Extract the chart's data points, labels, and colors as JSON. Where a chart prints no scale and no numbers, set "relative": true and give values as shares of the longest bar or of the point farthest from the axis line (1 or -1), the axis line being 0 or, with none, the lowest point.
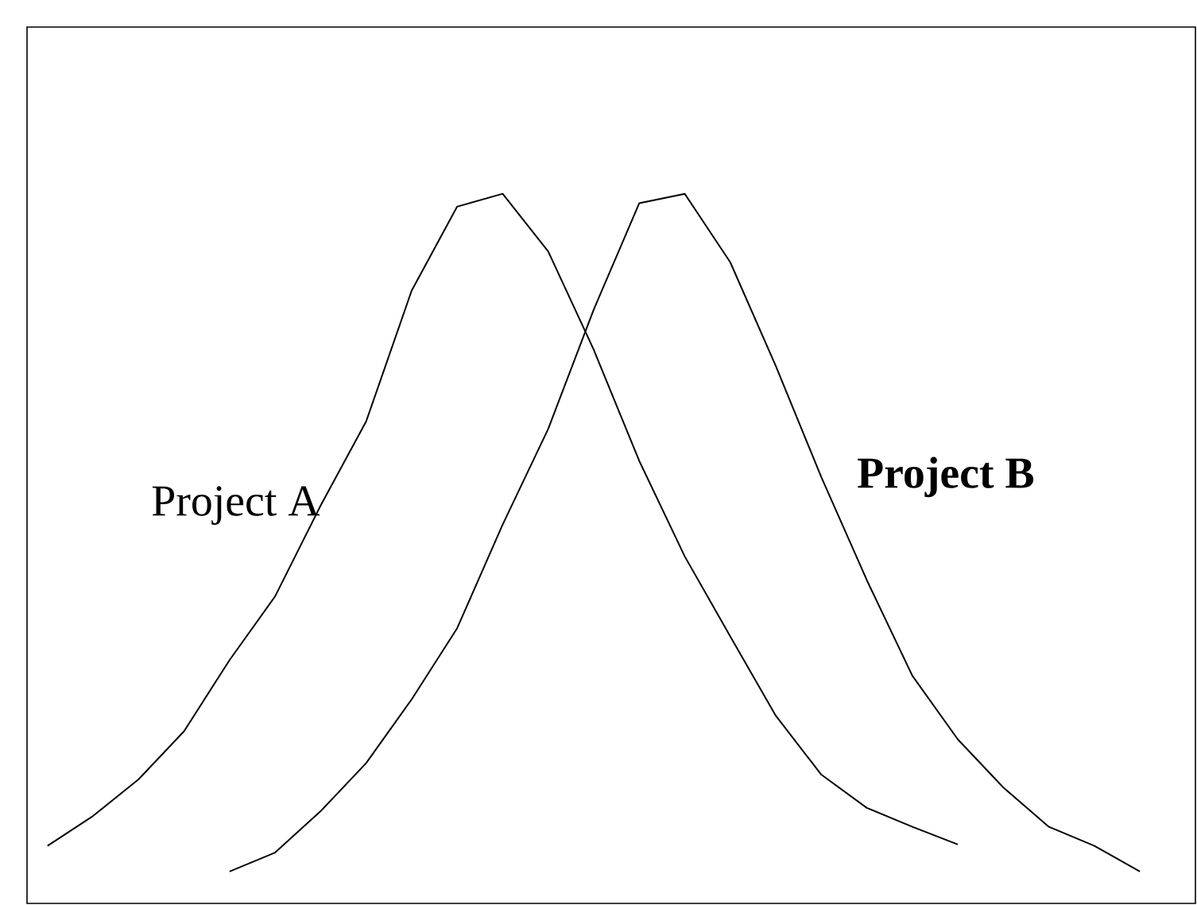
{
  "chart_data": {
    "type": "line",
    "relative": true,
    "categories": [
      null,
      null,
      null,
      null,
      null,
      null,
      null,
      null,
      null,
      null,
      null,
      null,
      null,
      null,
      null,
      null,
      null,
      null,
      null,
      null,
      null,
      null,
      null,
      null,
      null
    ],
    "series": [
      {
        "name": "Project A",
        "color": "#000000",
        "values": [
          0.038,
          0.082,
          0.136,
          0.207,
          0.312,
          0.406,
          0.54,
          0.664,
          0.857,
          0.981,
          1,
          0.915,
          0.77,
          0.606,
          0.465,
          0.347,
          0.23,
          0.143,
          0.094,
          0.066,
          0.04,
          null,
          null,
          null,
          null
        ]
      },
      {
        "name": "**Project B**",
        "color": "#000000",
        "values": [
          null,
          null,
          null,
          null,
          0,
          0.028,
          0.089,
          0.16,
          0.254,
          0.359,
          0.512,
          0.653,
          0.829,
          0.986,
          1,
          0.899,
          0.746,
          0.582,
          0.43,
          0.289,
          0.195,
          0.124,
          0.066,
          0.038,
          0
        ]
      }
    ]
  }
}
